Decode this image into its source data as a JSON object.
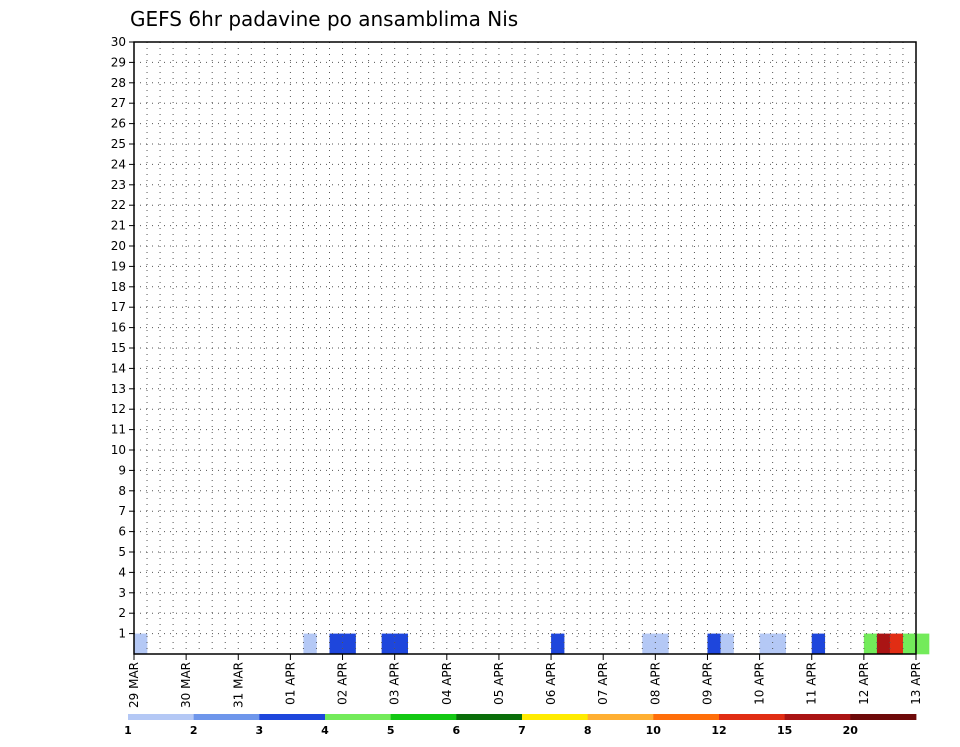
{
  "chart_data": {
    "type": "heatmap",
    "title": "GEFS 6hr padavine po ansamblima Nis",
    "x_tick_labels": [
      "29 MAR",
      "30 MAR",
      "31 MAR",
      "01 APR",
      "02 APR",
      "03 APR",
      "04 APR",
      "05 APR",
      "06 APR",
      "07 APR",
      "08 APR",
      "09 APR",
      "10 APR",
      "11 APR",
      "12 APR",
      "13 APR"
    ],
    "y_tick_labels": [
      "1",
      "2",
      "3",
      "4",
      "5",
      "6",
      "7",
      "8",
      "9",
      "10",
      "11",
      "12",
      "13",
      "14",
      "15",
      "16",
      "17",
      "18",
      "19",
      "20",
      "21",
      "22",
      "23",
      "24",
      "25",
      "26",
      "27",
      "28",
      "29",
      "30"
    ],
    "x_range": [
      "29 MAR 00Z",
      "13 APR 00Z"
    ],
    "x_step": "6hr",
    "y_range": [
      0,
      30
    ],
    "grid": true,
    "colorbar": {
      "placement": "bottom",
      "labels": [
        "1",
        "2",
        "3",
        "4",
        "5",
        "6",
        "7",
        "8",
        "10",
        "12",
        "15",
        "20"
      ],
      "colors": [
        "#b4c8f5",
        "#6e96eb",
        "#1e46dc",
        "#73eb5a",
        "#14c814",
        "#0a6e0a",
        "#ffeb00",
        "#ffaf32",
        "#ff6e0a",
        "#e12d14",
        "#aa1414",
        "#6e0a0a"
      ]
    },
    "cells": [
      {
        "member": 0,
        "step": 0,
        "value": 1.5
      },
      {
        "member": 0,
        "step": 13,
        "value": 1.5
      },
      {
        "member": 0,
        "step": 15,
        "value": 3.5
      },
      {
        "member": 0,
        "step": 16,
        "value": 3.5
      },
      {
        "member": 0,
        "step": 19,
        "value": 3.5
      },
      {
        "member": 0,
        "step": 20,
        "value": 3.5
      },
      {
        "member": 0,
        "step": 32,
        "value": 3.5
      },
      {
        "member": 0,
        "step": 39,
        "value": 1.5
      },
      {
        "member": 0,
        "step": 40,
        "value": 1.5
      },
      {
        "member": 0,
        "step": 44,
        "value": 3.5
      },
      {
        "member": 0,
        "step": 45,
        "value": 1.5
      },
      {
        "member": 0,
        "step": 48,
        "value": 1.5
      },
      {
        "member": 0,
        "step": 49,
        "value": 1.5
      },
      {
        "member": 0,
        "step": 52,
        "value": 3.5
      },
      {
        "member": 0,
        "step": 56,
        "value": 4.5
      },
      {
        "member": 0,
        "step": 57,
        "value": 18
      },
      {
        "member": 0,
        "step": 58,
        "value": 14
      },
      {
        "member": 0,
        "step": 59,
        "value": 4.5
      },
      {
        "member": 0,
        "step": 60,
        "value": 4.5
      },
      {
        "member": 0,
        "step": 59,
        "value": 4.5
      },
      {
        "member": 0,
        "step": 59,
        "value": 4.5
      },
      {
        "member": 0,
        "step": 59,
        "value": 4.5
      },
      {
        "member": 0,
        "step": 59,
        "value": 4.5
      },
      {
        "member": 0,
        "step": 59,
        "value": 4.5
      },
      {
        "member": 0,
        "step": 59,
        "value": 4.5
      },
      {
        "member": 0,
        "step": 59,
        "value": 4.5
      },
      {
        "member": 0,
        "step": 59,
        "value": 4.5
      },
      {
        "member": 0,
        "step": 59,
        "value": 4.5
      },
      {
        "member": 0,
        "step": 59,
        "value": 4.5
      },
      {
        "member": 0,
        "step": 59,
        "value": 4.5
      },
      {
        "member": 0,
        "step": 59,
        "value": 4.5
      },
      {
        "member": 0,
        "step": 59,
        "value": 4.5
      },
      {
        "member": 0,
        "step": 59,
        "value": 4.5
      },
      {
        "member": 0,
        "step": 59,
        "value": 4.5
      },
      {
        "member": 0,
        "step": 59,
        "value": 4.5
      },
      {
        "member": 0,
        "step": 59,
        "value": 4.5
      },
      {
        "member": 0,
        "step": 59,
        "value": 4.5
      },
      {
        "member": 0,
        "step": 59,
        "value": 4.5
      },
      {
        "member": 0,
        "step": 59,
        "value": 4.5
      },
      {
        "member": 0,
        "step": 59,
        "value": 4.5
      },
      {
        "member": 0,
        "step": 59,
        "value": 4.5
      },
      {
        "member": 0,
        "step": 59,
        "value": 4.5
      },
      {
        "member": 0,
        "step": 59,
        "value": 4.5
      },
      {
        "member": 0,
        "step": 59,
        "value": 4.5
      },
      {
        "member": 0,
        "step": 59,
        "value": 4.5
      },
      {
        "member": 0,
        "step": 59,
        "value": 4.5
      },
      {
        "member": 0,
        "step": 59,
        "value": 4.5
      },
      {
        "member": 0,
        "step": 59,
        "value": 4.5
      },
      {
        "member": 0,
        "step": 59,
        "value": 4.5
      },
      {
        "member": 0,
        "step": 59,
        "value": 4.5
      },
      {
        "member": 0,
        "step": 59,
        "value": 4.5
      },
      {
        "member": 0,
        "step": 59,
        "value": 4.5
      },
      {
        "member": 0,
        "step": 59,
        "value": 4.5
      },
      {
        "member": 0,
        "step": 59,
        "value": 4.5
      },
      {
        "member": 0,
        "step": 59,
        "value": 4.5
      },
      {
        "member": 0,
        "step": 59,
        "value": 4.5
      },
      {
        "member": 0,
        "step": 59,
        "value": 4.5
      },
      {
        "member": 0,
        "step": 59,
        "value": 4.5
      },
      {
        "member": 0,
        "step": 59,
        "value": 4.5
      },
      {
        "member": 0,
        "step": 59,
        "value": 4.5
      },
      {
        "member": 0,
        "step": 59,
        "value": 4.5
      },
      {
        "member": 0,
        "step": 59,
        "value": 4.5
      },
      {
        "member": 0,
        "step": 59,
        "value": 4.5
      },
      {
        "member": 0,
        "step": 59,
        "value": 4.5
      },
      {
        "member": 0,
        "step": 59,
        "value": 4.5
      },
      {
        "member": 0,
        "step": 59,
        "value": 4.5
      },
      {
        "member": 0,
        "step": 59,
        "value": 4.5
      },
      {
        "member": 0,
        "step": 59,
        "value": 4.5
      },
      {
        "member": 0,
        "step": 59,
        "value": 4.5
      },
      {
        "member": 0,
        "step": 59,
        "value": 4.5
      },
      {
        "member": 0,
        "step": 59,
        "value": 4.5
      },
      {
        "member": 0,
        "step": 59,
        "value": 4.5
      },
      {
        "member": 0,
        "step": 59,
        "value": 4.5
      },
      {
        "member": 0,
        "step": 59,
        "value": 4.5
      },
      {
        "member": 0,
        "step": 59,
        "value": 4.5
      },
      {
        "member": 0,
        "step": 59,
        "value": 4.5
      },
      {
        "member": 0,
        "step": 59,
        "value": 4.5
      },
      {
        "member": 0,
        "step": 59,
        "value": 4.5
      },
      {
        "member": 0,
        "step": 59,
        "value": 4.5
      },
      {
        "member": 0,
        "step": 59,
        "value": 4.5
      },
      {
        "member": 0,
        "step": 59,
        "value": 4.5
      },
      {
        "member": 0,
        "step": 59,
        "value": 4.5
      },
      {
        "member": 0,
        "step": 59,
        "value": 4.5
      },
      {
        "member": 0,
        "step": 59,
        "value": 4.5
      },
      {
        "member": 0,
        "step": 59,
        "value": 4.5
      },
      {
        "member": 0,
        "step": 59,
        "value": 4.5
      },
      {
        "member": 0,
        "step": 59,
        "value": 4.5
      },
      {
        "member": 0,
        "step": 59,
        "value": 4.5
      },
      {
        "member": 0,
        "step": 59,
        "value": 4.5
      },
      {
        "member": 0,
        "step": 59,
        "value": 4.5
      },
      {
        "member": 0,
        "step": 59,
        "value": 4.5
      },
      {
        "member": 0,
        "step": 59,
        "value": 4.5
      },
      {
        "member": 0,
        "step": 59,
        "value": 4.5
      },
      {
        "member": 0,
        "step": 59,
        "value": 4.5
      },
      {
        "member": 0,
        "step": 59,
        "value": 4.5
      },
      {
        "member": 0,
        "step": 59,
        "value": 4.5
      },
      {
        "member": 0,
        "step": 59,
        "value": 4.5
      },
      {
        "member": 0,
        "step": 59,
        "value": 4.5
      },
      {
        "member": 0,
        "step": 59,
        "value": 4.5
      },
      {
        "member": 0,
        "step": 59,
        "value": 4.5
      },
      {
        "member": 0,
        "step": 59,
        "value": 4.5
      },
      {
        "member": 0,
        "step": 59,
        "value": 4.5
      },
      {
        "member": 0,
        "step": 59,
        "value": 4.5
      },
      {
        "member": 0,
        "step": 59,
        "value": 4.5
      },
      {
        "member": 0,
        "step": 59,
        "value": 4.5
      },
      {
        "member": 0,
        "step": 59,
        "value": 4.5
      },
      {
        "member": 0,
        "step": 59,
        "value": 4.5
      },
      {
        "member": 0,
        "step": 59,
        "value": 4.5
      },
      {
        "member": 0,
        "step": 59,
        "value": 4.5
      },
      {
        "member": 0,
        "step": 59,
        "value": 4.5
      },
      {
        "member": 0,
        "step": 59,
        "value": 4.5
      },
      {
        "member": 0,
        "step": 59,
        "value": 4.5
      },
      {
        "member": 0,
        "step": 59,
        "value": 4.5
      },
      {
        "member": 0,
        "step": 59,
        "value": 4.5
      },
      {
        "member": 0,
        "step": 59,
        "value": 4.5
      },
      {
        "member": 0,
        "step": 59,
        "value": 4.5
      },
      {
        "member": 0,
        "step": 59,
        "value": 4.5
      },
      {
        "member": 0,
        "step": 59,
        "value": 4.5
      },
      {
        "member": 0,
        "step": 59,
        "value": 4.5
      },
      {
        "member": 0,
        "step": 59,
        "value": 4.5
      },
      {
        "member": 0,
        "step": 59,
        "value": 4.5
      },
      {
        "member": 0,
        "step": 59,
        "value": 4.5
      },
      {
        "member": 0,
        "step": 59,
        "value": 4.5
      },
      {
        "member": 0,
        "step": 59,
        "value": 4.5
      },
      {
        "member": 0,
        "step": 59,
        "value": 4.5
      },
      {
        "member": 0,
        "step": 59,
        "value": 4.5
      },
      {
        "member": 0,
        "step": 59,
        "value": 4.5
      },
      {
        "member": 0,
        "step": 59,
        "value": 4.5
      },
      {
        "member": 0,
        "step": 59,
        "value": 4.5
      },
      {
        "member": 0,
        "step": 59,
        "value": 4.5
      },
      {
        "member": 0,
        "step": 59,
        "value": 4.5
      },
      {
        "member": 0,
        "step": 59,
        "value": 4.5
      },
      {
        "member": 0,
        "step": 59,
        "value": 4.5
      },
      {
        "member": 0,
        "step": 59,
        "value": 4.5
      },
      {
        "member": 0,
        "step": 59,
        "value": 4.5
      },
      {
        "member": 0,
        "step": 59,
        "value": 4.5
      },
      {
        "member": 0,
        "step": 59,
        "value": 4.5
      },
      {
        "member": 0,
        "step": 59,
        "value": 4.5
      },
      {
        "member": 0,
        "step": 59,
        "value": 4.5
      },
      {
        "member": 0,
        "step": 59,
        "value": 4.5
      },
      {
        "member": 0,
        "step": 59,
        "value": 4.5
      },
      {
        "member": 0,
        "step": 59,
        "value": 4.5
      },
      {
        "member": 0,
        "step": 59,
        "value": 4.5
      },
      {
        "member": 0,
        "step": 59,
        "value": 4.5
      },
      {
        "member": 0,
        "step": 59,
        "value": 4.5
      },
      {
        "member": 0,
        "step": 59,
        "value": 4.5
      },
      {
        "member": 0,
        "step": 59,
        "value": 4.5
      },
      {
        "member": 0,
        "step": 59,
        "value": 4.5
      },
      {
        "member": 0,
        "step": 59,
        "value": 4.5
      },
      {
        "member": 0,
        "step": 59,
        "value": 4.5
      },
      {
        "member": 0,
        "step": 59,
        "value": 4.5
      },
      {
        "member": 0,
        "step": 59,
        "value": 4.5
      }
    ]
  }
}
